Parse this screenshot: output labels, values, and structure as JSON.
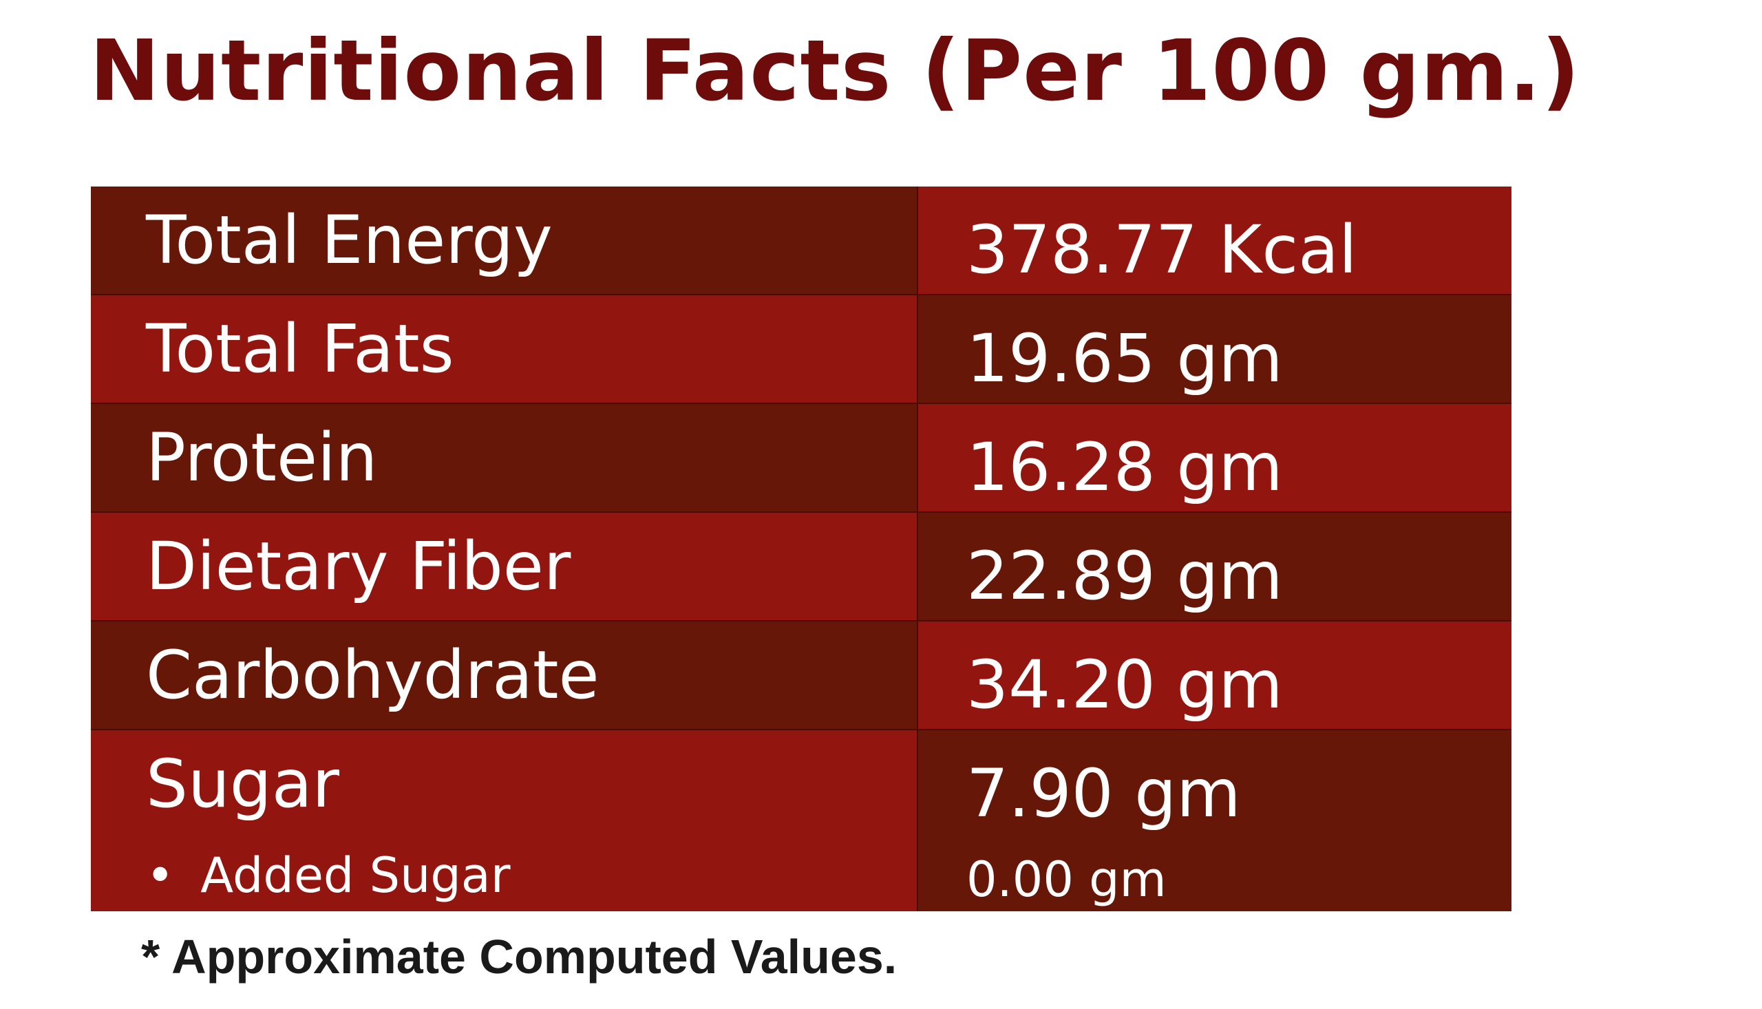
{
  "title": "Nutritional Facts (Per 100 gm.)",
  "rows": [
    {
      "label": "Total Energy",
      "value": "378.77 Kcal"
    },
    {
      "label": "Total Fats",
      "value": "19.65 gm"
    },
    {
      "label": "Protein",
      "value": "16.28 gm"
    },
    {
      "label": "Dietary Fiber",
      "value": "22.89 gm"
    },
    {
      "label": "Carbohydrate",
      "value": "34.20 gm"
    },
    {
      "label": "Sugar",
      "value": "7.90 gm",
      "sub_label": "Added Sugar",
      "sub_value": "0.00 gm"
    }
  ],
  "bullet": "•",
  "footnote": "* Approximate Computed Values.",
  "colors": {
    "title": "#6e0b0b",
    "row_dark": "#671707",
    "row_red": "#93150f",
    "text": "#ffffff",
    "footnote": "#1a1a1a"
  }
}
